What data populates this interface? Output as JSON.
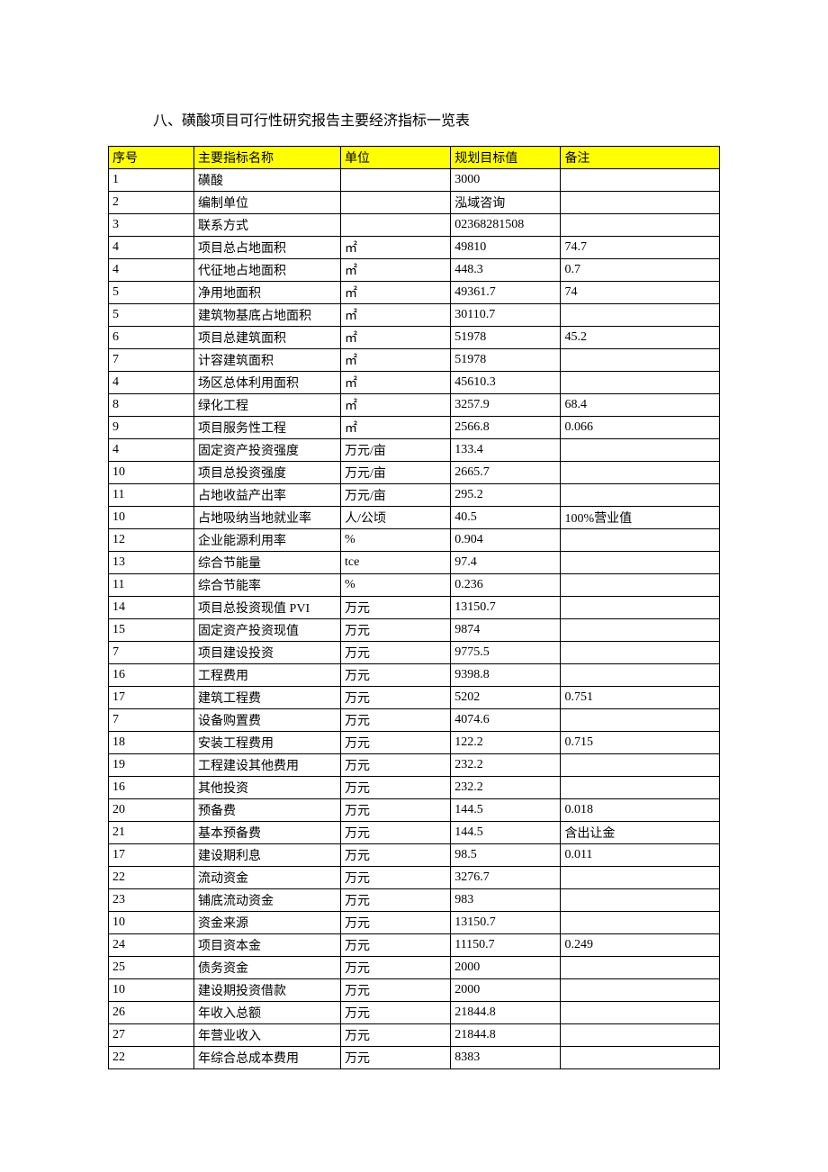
{
  "title": "八、磺酸项目可行性研究报告主要经济指标一览表",
  "table": {
    "header_bg": "#ffff00",
    "border_color": "#000000",
    "columns": [
      {
        "label": "序号",
        "width": "14%"
      },
      {
        "label": "主要指标名称",
        "width": "24%"
      },
      {
        "label": "单位",
        "width": "18%"
      },
      {
        "label": "规划目标值",
        "width": "18%"
      },
      {
        "label": "备注",
        "width": "26%"
      }
    ],
    "rows": [
      [
        "1",
        "磺酸",
        "",
        "3000",
        ""
      ],
      [
        "2",
        "编制单位",
        "",
        "泓域咨询",
        ""
      ],
      [
        "3",
        "联系方式",
        "",
        "02368281508",
        ""
      ],
      [
        "4",
        "项目总占地面积",
        "㎡",
        "49810",
        "74.7"
      ],
      [
        "4",
        "代征地占地面积",
        "㎡",
        "448.3",
        "0.7"
      ],
      [
        "5",
        "净用地面积",
        "㎡",
        "49361.7",
        "74"
      ],
      [
        "5",
        "建筑物基底占地面积",
        "㎡",
        "30110.7",
        ""
      ],
      [
        "6",
        "项目总建筑面积",
        "㎡",
        "51978",
        "45.2"
      ],
      [
        "7",
        "计容建筑面积",
        "㎡",
        "51978",
        ""
      ],
      [
        "4",
        "场区总体利用面积",
        "㎡",
        "45610.3",
        ""
      ],
      [
        "8",
        "绿化工程",
        "㎡",
        "3257.9",
        "68.4"
      ],
      [
        "9",
        "项目服务性工程",
        "㎡",
        "2566.8",
        "0.066"
      ],
      [
        "4",
        "固定资产投资强度",
        "万元/亩",
        "133.4",
        ""
      ],
      [
        "10",
        "项目总投资强度",
        "万元/亩",
        "2665.7",
        ""
      ],
      [
        "11",
        "占地收益产出率",
        "万元/亩",
        "295.2",
        ""
      ],
      [
        "10",
        "占地吸纳当地就业率",
        "人/公顷",
        "40.5",
        "100%营业值"
      ],
      [
        "12",
        "企业能源利用率",
        "%",
        "0.904",
        ""
      ],
      [
        "13",
        "综合节能量",
        "tce",
        "97.4",
        ""
      ],
      [
        "11",
        "综合节能率",
        "%",
        "0.236",
        ""
      ],
      [
        "14",
        "项目总投资现值 PVI",
        "万元",
        "13150.7",
        ""
      ],
      [
        "15",
        "固定资产投资现值",
        "万元",
        "9874",
        ""
      ],
      [
        "7",
        "项目建设投资",
        "万元",
        "9775.5",
        ""
      ],
      [
        "16",
        "工程费用",
        "万元",
        "9398.8",
        ""
      ],
      [
        "17",
        "建筑工程费",
        "万元",
        "5202",
        "0.751"
      ],
      [
        "7",
        "设备购置费",
        "万元",
        "4074.6",
        ""
      ],
      [
        "18",
        "安装工程费用",
        "万元",
        "122.2",
        "0.715"
      ],
      [
        "19",
        "工程建设其他费用",
        "万元",
        "232.2",
        ""
      ],
      [
        "16",
        "其他投资",
        "万元",
        "232.2",
        ""
      ],
      [
        "20",
        "预备费",
        "万元",
        "144.5",
        "0.018"
      ],
      [
        "21",
        "基本预备费",
        "万元",
        "144.5",
        "含出让金"
      ],
      [
        "17",
        "建设期利息",
        "万元",
        "98.5",
        "0.011"
      ],
      [
        "22",
        "流动资金",
        "万元",
        "3276.7",
        ""
      ],
      [
        "23",
        "铺底流动资金",
        "万元",
        "983",
        ""
      ],
      [
        "10",
        "资金来源",
        "万元",
        "13150.7",
        ""
      ],
      [
        "24",
        "项目资本金",
        "万元",
        "11150.7",
        "0.249"
      ],
      [
        "25",
        "债务资金",
        "万元",
        "2000",
        ""
      ],
      [
        "10",
        "建设期投资借款",
        "万元",
        "2000",
        ""
      ],
      [
        "26",
        "年收入总额",
        "万元",
        "21844.8",
        ""
      ],
      [
        "27",
        "年营业收入",
        "万元",
        "21844.8",
        ""
      ],
      [
        "22",
        "年综合总成本费用",
        "万元",
        "8383",
        ""
      ]
    ]
  }
}
